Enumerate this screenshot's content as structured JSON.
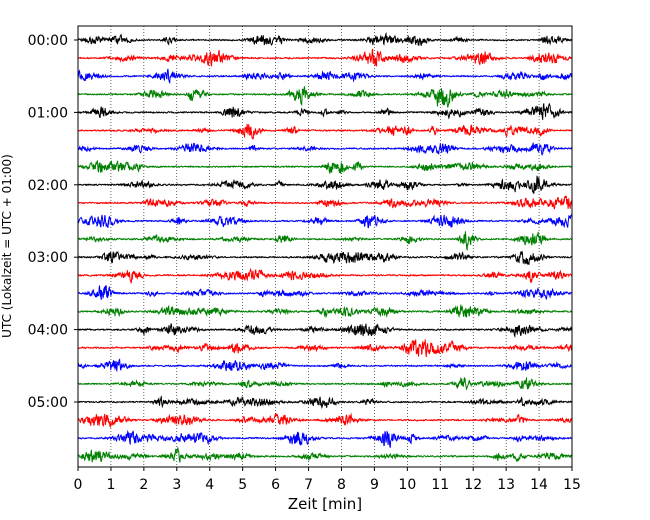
{
  "chart_data": {
    "type": "line",
    "title": "",
    "xlabel": "Zeit  [min]",
    "ylabel": "UTC (Lokalzeit = UTC + 01:00)",
    "xlim": [
      0,
      15
    ],
    "x_ticks": [
      "0",
      "1",
      "2",
      "3",
      "4",
      "5",
      "6",
      "7",
      "8",
      "9",
      "10",
      "11",
      "12",
      "13",
      "14",
      "15"
    ],
    "y_ticks": [
      "00:00",
      "01:00",
      "02:00",
      "03:00",
      "04:00",
      "05:00"
    ],
    "grid": "vertical-dotted",
    "line_minutes_per_row": 15,
    "row_count": 24,
    "row_color_cycle": [
      "#000000",
      "#ff0000",
      "#0000ff",
      "#008000"
    ],
    "series": [
      {
        "start": "00:00"
      },
      {
        "start": "00:15"
      },
      {
        "start": "00:30"
      },
      {
        "start": "00:45"
      },
      {
        "start": "01:00"
      },
      {
        "start": "01:15"
      },
      {
        "start": "01:30"
      },
      {
        "start": "01:45"
      },
      {
        "start": "02:00"
      },
      {
        "start": "02:15"
      },
      {
        "start": "02:30"
      },
      {
        "start": "02:45"
      },
      {
        "start": "03:00"
      },
      {
        "start": "03:15"
      },
      {
        "start": "03:30"
      },
      {
        "start": "03:45"
      },
      {
        "start": "04:00"
      },
      {
        "start": "04:15"
      },
      {
        "start": "04:30"
      },
      {
        "start": "04:45"
      },
      {
        "start": "05:00"
      },
      {
        "start": "05:15"
      },
      {
        "start": "05:30"
      },
      {
        "start": "05:45"
      }
    ]
  }
}
